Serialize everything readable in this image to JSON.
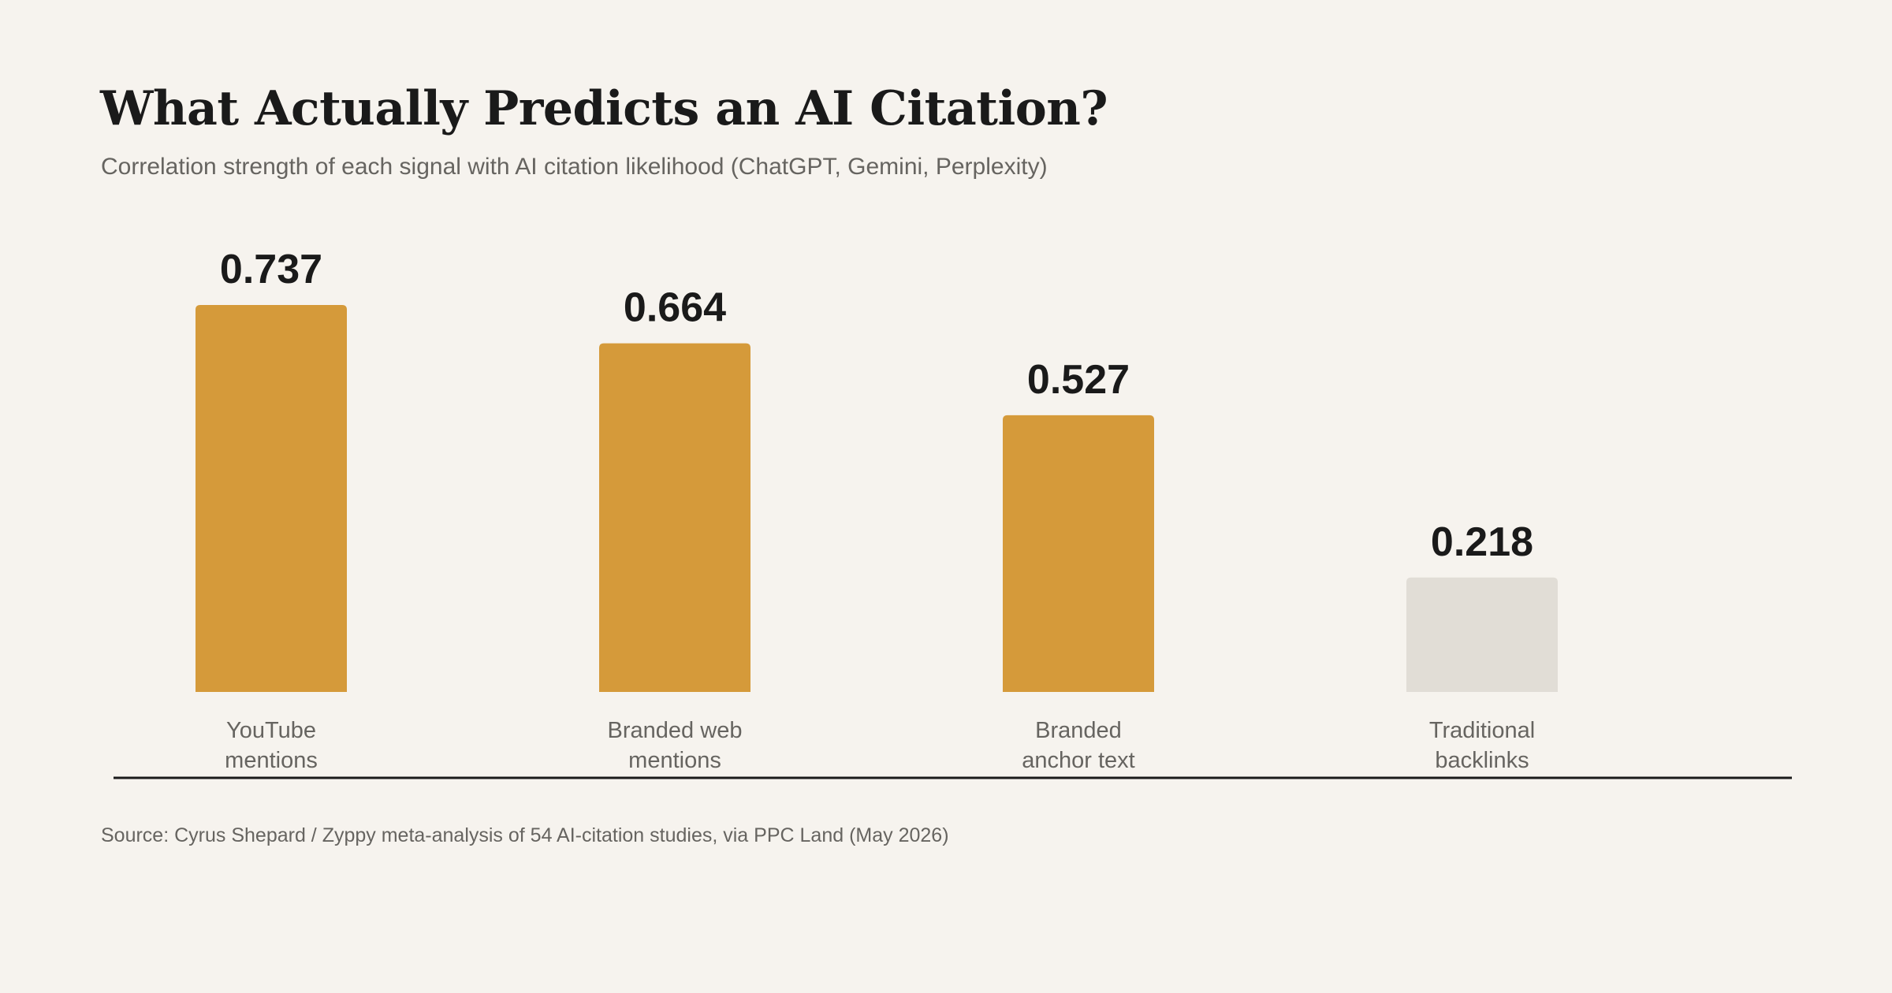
{
  "title": "What Actually Predicts an AI Citation?",
  "subtitle": "Correlation strength of each signal with AI citation likelihood (ChatGPT, Gemini, Perplexity)",
  "source": "Source: Cyrus Shepard / Zyppy meta-analysis of 54 AI-citation studies, via PPC Land (May 2026)",
  "colors": {
    "background": "#f6f3ee",
    "highlight": "#d59a3a",
    "muted": "#e1ddd6",
    "text": "#1a1a1a",
    "secondary_text": "#666460",
    "axis": "#1a1a1a"
  },
  "chart_data": {
    "type": "bar",
    "categories": [
      [
        "YouTube",
        "mentions"
      ],
      [
        "Branded web",
        "mentions"
      ],
      [
        "Branded",
        "anchor text"
      ],
      [
        "Traditional",
        "backlinks"
      ]
    ],
    "values": [
      0.737,
      0.664,
      0.527,
      0.218
    ],
    "value_labels": [
      "0.737",
      "0.664",
      "0.527",
      "0.218"
    ],
    "bar_colors": [
      "#d59a3a",
      "#d59a3a",
      "#d59a3a",
      "#e1ddd6"
    ],
    "ylim": [
      0,
      0.737
    ],
    "grid": false,
    "legend": "none"
  }
}
